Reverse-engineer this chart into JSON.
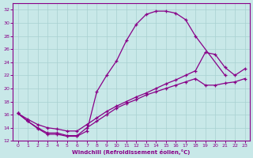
{
  "xlabel": "Windchill (Refroidissement éolien,°C)",
  "xlim": [
    -0.5,
    23.5
  ],
  "ylim": [
    12,
    33
  ],
  "xticks": [
    0,
    1,
    2,
    3,
    4,
    5,
    6,
    7,
    8,
    9,
    10,
    11,
    12,
    13,
    14,
    15,
    16,
    17,
    18,
    19,
    20,
    21,
    22,
    23
  ],
  "yticks": [
    12,
    14,
    16,
    18,
    20,
    22,
    24,
    26,
    28,
    30,
    32
  ],
  "bg_color": "#c8e8e8",
  "grid_color": "#a8d0d0",
  "line_color": "#880088",
  "curve1_x": [
    0,
    1,
    2,
    3,
    4,
    5,
    6,
    7,
    8,
    9,
    10,
    11,
    12,
    13,
    14,
    15,
    16,
    17,
    18,
    21
  ],
  "curve1_y": [
    16.2,
    15.0,
    13.9,
    13.0,
    13.0,
    12.7,
    12.7,
    13.5,
    19.5,
    22.0,
    24.2,
    27.3,
    29.8,
    31.3,
    31.8,
    31.8,
    31.5,
    30.5,
    28.0,
    22.0
  ],
  "curve2_x": [
    0,
    1,
    2,
    3,
    4,
    5,
    6,
    7,
    8,
    9,
    10,
    11,
    12,
    13,
    14,
    15,
    16,
    17,
    18,
    19,
    20,
    21,
    22,
    23
  ],
  "curve2_y": [
    16.2,
    15.3,
    14.5,
    14.0,
    13.8,
    13.5,
    13.5,
    14.5,
    15.5,
    16.5,
    17.3,
    18.0,
    18.7,
    19.3,
    20.0,
    20.7,
    21.3,
    22.0,
    22.7,
    25.5,
    25.2,
    23.2,
    22.0,
    23.0
  ],
  "curve3_x": [
    0,
    1,
    2,
    3,
    4,
    5,
    6,
    7,
    8,
    9,
    10,
    11,
    12,
    13,
    14,
    15,
    16,
    17,
    18,
    19,
    20,
    21,
    22,
    23
  ],
  "curve3_y": [
    16.2,
    15.0,
    14.0,
    13.2,
    13.2,
    12.8,
    12.8,
    14.0,
    15.0,
    16.0,
    17.0,
    17.7,
    18.3,
    19.0,
    19.5,
    20.0,
    20.5,
    21.0,
    21.5,
    20.5,
    20.5,
    20.8,
    21.0,
    21.5
  ]
}
